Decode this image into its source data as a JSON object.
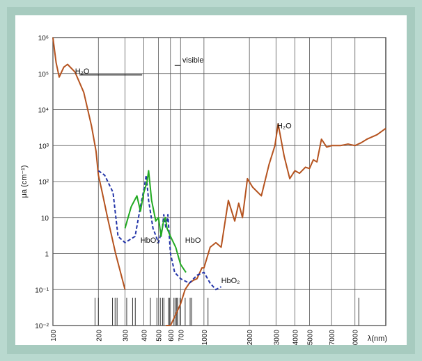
{
  "chart_data": {
    "type": "line",
    "title": "",
    "xlabel": "λ(nm)",
    "ylabel": "μa (cm⁻¹)",
    "x_scale": "log",
    "y_scale": "log",
    "xlim": [
      100,
      16000
    ],
    "ylim": [
      0.01,
      1000000
    ],
    "grid": true,
    "x_ticks": [
      100,
      200,
      300,
      400,
      500,
      600,
      700,
      1000,
      2000,
      3000,
      4000,
      5000,
      7000,
      10000
    ],
    "x_tick_labels": [
      "100",
      "200",
      "300",
      "400",
      "500",
      "600",
      "700",
      "1000",
      "2000",
      "3000",
      "4000",
      "5000",
      "7000",
      "10000"
    ],
    "y_ticks": [
      0.01,
      0.1,
      1,
      10,
      100,
      1000,
      10000,
      100000,
      1000000
    ],
    "y_tick_labels": [
      "10⁻²",
      "10⁻¹",
      "1",
      "10",
      "10²",
      "10³",
      "10⁴",
      "10⁵",
      "10⁶"
    ],
    "laser_lines_nm": [
      190,
      200,
      248,
      258,
      266,
      308,
      337,
      351,
      442,
      488,
      514,
      532,
      543,
      580,
      593,
      633,
      647,
      660,
      670,
      694,
      751,
      810,
      830,
      1064,
      10600
    ],
    "series": [
      {
        "key": "water",
        "color": "#b5531f",
        "x": [
          100,
          105,
          110,
          118,
          125,
          140,
          160,
          180,
          193,
          200,
          210,
          230,
          260,
          300
        ],
        "y": [
          1000000,
          200000,
          80000,
          150000,
          180000,
          110000,
          30000,
          3500,
          700,
          150,
          60,
          10,
          1,
          0.1
        ]
      },
      {
        "key": "water_red",
        "color": "#b5531f",
        "x": [
          560,
          600,
          650,
          700,
          750,
          800,
          850,
          900,
          970,
          1000,
          1100,
          1200,
          1300,
          1450,
          1600,
          1700,
          1800,
          1940,
          2100,
          2400,
          2700,
          2950,
          3100,
          3400,
          3700,
          4000,
          4300,
          4700,
          5000,
          5300,
          5600,
          6000,
          6500,
          7000,
          8000,
          9000,
          10000,
          11000,
          12000,
          14000,
          16000
        ],
        "y": [
          0.004,
          0.01,
          0.02,
          0.04,
          0.1,
          0.15,
          0.18,
          0.2,
          0.4,
          0.4,
          1.5,
          2,
          1.5,
          30,
          8,
          25,
          10,
          120,
          70,
          40,
          300,
          1000,
          4000,
          500,
          120,
          200,
          170,
          250,
          230,
          400,
          350,
          1500,
          900,
          1000,
          1000,
          1100,
          1000,
          1200,
          1500,
          2000,
          3000
        ]
      },
      {
        "key": "hbo2",
        "color": "#2233a8",
        "x": [
          200,
          220,
          250,
          270,
          300,
          350,
          380,
          400,
          415,
          430,
          460,
          500,
          530,
          542,
          560,
          577,
          600,
          640,
          700,
          800,
          900,
          1000,
          1100,
          1200,
          1300
        ],
        "y": [
          200,
          150,
          50,
          3,
          2,
          3,
          20,
          60,
          150,
          30,
          5,
          2,
          5,
          12,
          5,
          12,
          1,
          0.3,
          0.2,
          0.15,
          0.25,
          0.3,
          0.15,
          0.1,
          0.12
        ]
      },
      {
        "key": "hb",
        "color": "#22aa22",
        "x": [
          300,
          330,
          360,
          380,
          400,
          420,
          430,
          450,
          480,
          500,
          520,
          540,
          555,
          570,
          600,
          650,
          700,
          760
        ],
        "y": [
          5,
          20,
          40,
          15,
          50,
          100,
          200,
          30,
          8,
          10,
          3,
          8,
          10,
          5,
          3,
          1.5,
          0.5,
          0.3
        ]
      }
    ],
    "annotations": [
      {
        "text": "H₂O",
        "x": 140,
        "y": 100000
      },
      {
        "text": "visible",
        "x": 720,
        "y": 200000
      },
      {
        "text": "HbO₂",
        "x": 380,
        "y": 2
      },
      {
        "text": "HbO",
        "x": 750,
        "y": 2
      },
      {
        "text": "H₂O",
        "x": 3050,
        "y": 3000
      },
      {
        "text": "HbO₂",
        "x": 1300,
        "y": 0.15
      }
    ]
  }
}
